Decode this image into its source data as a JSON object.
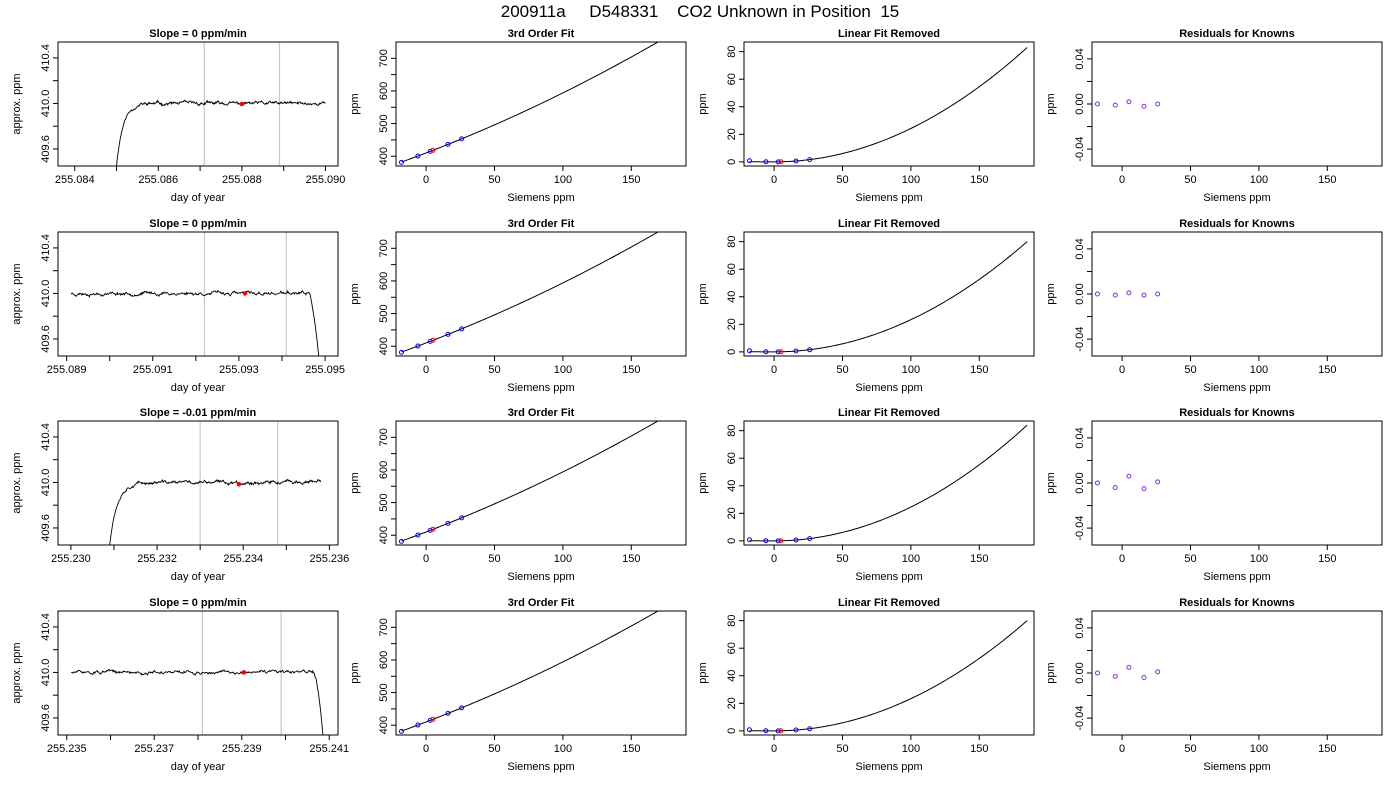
{
  "page": {
    "title": "200911a     D548331    CO2 Unknown in Position  15"
  },
  "colors": {
    "trace": "#000000",
    "marker_red": "#ff0000",
    "marker_blue": "#0000ff",
    "marker_purple": "#8a2be2",
    "fit_line": "#000000",
    "window_line": "#c8c8c8",
    "axis": "#000000"
  },
  "chart_data": [
    {
      "type": "line",
      "row": 1,
      "panel": "time-series",
      "title": "Slope =  0  ppm/min",
      "xlabel": "day of year",
      "ylabel": "approx. ppm",
      "xlim": [
        255.0836,
        255.0903
      ],
      "ylim": [
        409.45,
        410.54
      ],
      "x_ticks": [
        "255.084",
        "255.086",
        "255.088",
        "255.090"
      ],
      "x_tick_values": [
        255.084,
        255.086,
        255.088,
        255.09
      ],
      "x_minor_ticks": [
        255.085,
        255.087,
        255.089
      ],
      "y_ticks": [
        "409.6",
        "410.0",
        "410.4"
      ],
      "y_tick_values": [
        409.6,
        410.0,
        410.4
      ],
      "y_minor_ticks": [
        409.8,
        410.2
      ],
      "window_lines_x": [
        255.0871,
        255.0889
      ],
      "trace": {
        "x_start": 255.085,
        "x_end": 255.09,
        "plateau_ppm": 410.0,
        "noise_ppm": 0.012,
        "shape": "rise",
        "rise_start_ppm": 409.45,
        "rise_duration_days": 0.00065,
        "seed": 11
      },
      "marker": {
        "x": 255.088,
        "y": 409.995
      }
    },
    {
      "type": "line",
      "row": 1,
      "panel": "fit",
      "title": "3rd Order Fit",
      "xlabel": "Siemens ppm",
      "ylabel": "ppm",
      "xlim": [
        -22,
        190
      ],
      "ylim": [
        370,
        750
      ],
      "x_ticks": [
        "0",
        "50",
        "100",
        "150"
      ],
      "x_tick_values": [
        0,
        50,
        100,
        150
      ],
      "y_ticks": [
        "400",
        "500",
        "600",
        "700"
      ],
      "y_tick_values": [
        400,
        500,
        600,
        700
      ],
      "y_minor_ticks": [
        450,
        550,
        650
      ],
      "curve": {
        "x_start": -18,
        "x_end": 185,
        "a": 410,
        "b": 1.6,
        "c": 0.0024
      },
      "knowns": [
        {
          "x": -18,
          "y": 381.1
        },
        {
          "x": -6,
          "y": 400.5
        },
        {
          "x": 3,
          "y": 414.8
        },
        {
          "x": 16,
          "y": 436.2
        },
        {
          "x": 26,
          "y": 453.2
        }
      ],
      "unknown": {
        "x": 5,
        "y": 418.1
      }
    },
    {
      "type": "line",
      "row": 1,
      "panel": "linear-removed",
      "title": "Linear Fit Removed",
      "xlabel": "Siemens ppm",
      "ylabel": "ppm",
      "xlim": [
        -22,
        190
      ],
      "ylim": [
        -3,
        87
      ],
      "x_ticks": [
        "0",
        "50",
        "100",
        "150"
      ],
      "x_tick_values": [
        0,
        50,
        100,
        150
      ],
      "y_ticks": [
        "0",
        "20",
        "40",
        "60",
        "80"
      ],
      "y_tick_values": [
        0,
        20,
        40,
        60,
        80
      ],
      "curve": {
        "x_start": -18,
        "x_end": 185,
        "min_x": 0,
        "end_y": 83
      },
      "knowns": [
        {
          "x": -18,
          "y": 0.8
        },
        {
          "x": -6,
          "y": 0.1
        },
        {
          "x": 3,
          "y": 0.0
        },
        {
          "x": 16,
          "y": 0.6
        },
        {
          "x": 26,
          "y": 1.6
        }
      ],
      "unknown": {
        "x": 5,
        "y": 0.1
      }
    },
    {
      "type": "scatter",
      "row": 1,
      "panel": "residuals",
      "title": "Residuals for Knowns",
      "xlabel": "Siemens ppm",
      "ylabel": "ppm",
      "xlim": [
        -22,
        190
      ],
      "ylim": [
        -0.055,
        0.055
      ],
      "x_ticks": [
        "0",
        "50",
        "100",
        "150"
      ],
      "x_tick_values": [
        0,
        50,
        100,
        150
      ],
      "y_ticks": [
        "-0.04",
        "0.00",
        "0.04"
      ],
      "y_tick_values": [
        -0.04,
        0.0,
        0.04
      ],
      "y_minor_ticks": [
        -0.02,
        0.02
      ],
      "points": [
        {
          "x": -18,
          "y": 0.0
        },
        {
          "x": -5,
          "y": -0.001
        },
        {
          "x": 5,
          "y": 0.002
        },
        {
          "x": 16,
          "y": -0.002
        },
        {
          "x": 26,
          "y": 0.0
        }
      ]
    },
    {
      "type": "line",
      "row": 2,
      "panel": "time-series",
      "title": "Slope =  0  ppm/min",
      "xlabel": "day of year",
      "ylabel": "approx. ppm",
      "xlim": [
        255.0888,
        255.0953
      ],
      "ylim": [
        409.45,
        410.54
      ],
      "x_ticks": [
        "255.089",
        "255.091",
        "255.093",
        "255.095"
      ],
      "x_tick_values": [
        255.089,
        255.091,
        255.093,
        255.095
      ],
      "x_minor_ticks": [
        255.09,
        255.092,
        255.094
      ],
      "y_ticks": [
        "409.6",
        "410.0",
        "410.4"
      ],
      "y_tick_values": [
        409.6,
        410.0,
        410.4
      ],
      "y_minor_ticks": [
        409.8,
        410.2
      ],
      "window_lines_x": [
        255.0922,
        255.0941
      ],
      "trace": {
        "x_start": 255.0891,
        "x_end": 255.0949,
        "plateau_ppm": 410.0,
        "noise_ppm": 0.012,
        "shape": "fall",
        "fall_start_x": 255.09462,
        "fall_end_ppm": 409.45,
        "seed": 23
      },
      "marker": {
        "x": 255.09314,
        "y": 410.0
      }
    },
    {
      "type": "line",
      "row": 2,
      "panel": "fit",
      "title": "3rd Order Fit",
      "xlabel": "Siemens ppm",
      "ylabel": "ppm",
      "xlim": [
        -22,
        190
      ],
      "ylim": [
        370,
        750
      ],
      "x_ticks": [
        "0",
        "50",
        "100",
        "150"
      ],
      "x_tick_values": [
        0,
        50,
        100,
        150
      ],
      "y_ticks": [
        "400",
        "500",
        "600",
        "700"
      ],
      "y_tick_values": [
        400,
        500,
        600,
        700
      ],
      "y_minor_ticks": [
        450,
        550,
        650
      ],
      "curve": {
        "x_start": -18,
        "x_end": 185,
        "a": 410,
        "b": 1.6,
        "c": 0.0024
      },
      "knowns": [
        {
          "x": -18,
          "y": 381.1
        },
        {
          "x": -6,
          "y": 400.5
        },
        {
          "x": 3,
          "y": 414.8
        },
        {
          "x": 16,
          "y": 436.2
        },
        {
          "x": 26,
          "y": 453.2
        }
      ],
      "unknown": {
        "x": 5,
        "y": 418.1
      }
    },
    {
      "type": "line",
      "row": 2,
      "panel": "linear-removed",
      "title": "Linear Fit Removed",
      "xlabel": "Siemens ppm",
      "ylabel": "ppm",
      "xlim": [
        -22,
        190
      ],
      "ylim": [
        -3,
        87
      ],
      "x_ticks": [
        "0",
        "50",
        "100",
        "150"
      ],
      "x_tick_values": [
        0,
        50,
        100,
        150
      ],
      "y_ticks": [
        "0",
        "20",
        "40",
        "60",
        "80"
      ],
      "y_tick_values": [
        0,
        20,
        40,
        60,
        80
      ],
      "curve": {
        "x_start": -18,
        "x_end": 185,
        "min_x": 0,
        "end_y": 80
      },
      "knowns": [
        {
          "x": -18,
          "y": 0.8
        },
        {
          "x": -6,
          "y": 0.1
        },
        {
          "x": 3,
          "y": 0.0
        },
        {
          "x": 16,
          "y": 0.6
        },
        {
          "x": 26,
          "y": 1.5
        }
      ],
      "unknown": {
        "x": 5,
        "y": 0.1
      }
    },
    {
      "type": "scatter",
      "row": 2,
      "panel": "residuals",
      "title": "Residuals for Knowns",
      "xlabel": "Siemens ppm",
      "ylabel": "ppm",
      "xlim": [
        -22,
        190
      ],
      "ylim": [
        -0.055,
        0.055
      ],
      "x_ticks": [
        "0",
        "50",
        "100",
        "150"
      ],
      "x_tick_values": [
        0,
        50,
        100,
        150
      ],
      "y_ticks": [
        "-0.04",
        "0.00",
        "0.04"
      ],
      "y_tick_values": [
        -0.04,
        0.0,
        0.04
      ],
      "y_minor_ticks": [
        -0.02,
        0.02
      ],
      "points": [
        {
          "x": -18,
          "y": 0.0
        },
        {
          "x": -5,
          "y": -0.001
        },
        {
          "x": 5,
          "y": 0.001
        },
        {
          "x": 16,
          "y": -0.001
        },
        {
          "x": 26,
          "y": 0.0
        }
      ]
    },
    {
      "type": "line",
      "row": 3,
      "panel": "time-series",
      "title": "Slope =  -0.01  ppm/min",
      "xlabel": "day of year",
      "ylabel": "approx. ppm",
      "xlim": [
        255.2297,
        255.2362
      ],
      "ylim": [
        409.45,
        410.54
      ],
      "x_ticks": [
        "255.230",
        "255.232",
        "255.234",
        "255.236"
      ],
      "x_tick_values": [
        255.23,
        255.232,
        255.234,
        255.236
      ],
      "x_minor_ticks": [
        255.231,
        255.233,
        255.235
      ],
      "y_ticks": [
        "409.6",
        "410.0",
        "410.4"
      ],
      "y_tick_values": [
        409.6,
        410.0,
        410.4
      ],
      "y_minor_ticks": [
        409.8,
        410.2
      ],
      "window_lines_x": [
        255.233,
        255.2348
      ],
      "trace": {
        "x_start": 255.2309,
        "x_end": 255.2358,
        "plateau_ppm": 410.0,
        "noise_ppm": 0.012,
        "shape": "rise",
        "rise_start_ppm": 409.45,
        "rise_duration_days": 0.0007,
        "seed": 37
      },
      "marker": {
        "x": 255.2339,
        "y": 409.985
      }
    },
    {
      "type": "line",
      "row": 3,
      "panel": "fit",
      "title": "3rd Order Fit",
      "xlabel": "Siemens ppm",
      "ylabel": "ppm",
      "xlim": [
        -22,
        190
      ],
      "ylim": [
        370,
        750
      ],
      "x_ticks": [
        "0",
        "50",
        "100",
        "150"
      ],
      "x_tick_values": [
        0,
        50,
        100,
        150
      ],
      "y_ticks": [
        "400",
        "500",
        "600",
        "700"
      ],
      "y_tick_values": [
        400,
        500,
        600,
        700
      ],
      "y_minor_ticks": [
        450,
        550,
        650
      ],
      "curve": {
        "x_start": -18,
        "x_end": 185,
        "a": 410,
        "b": 1.6,
        "c": 0.0024
      },
      "knowns": [
        {
          "x": -18,
          "y": 381.1
        },
        {
          "x": -6,
          "y": 400.5
        },
        {
          "x": 3,
          "y": 414.8
        },
        {
          "x": 16,
          "y": 436.2
        },
        {
          "x": 26,
          "y": 453.2
        }
      ],
      "unknown": {
        "x": 5,
        "y": 418.1
      }
    },
    {
      "type": "line",
      "row": 3,
      "panel": "linear-removed",
      "title": "Linear Fit Removed",
      "xlabel": "Siemens ppm",
      "ylabel": "ppm",
      "xlim": [
        -22,
        190
      ],
      "ylim": [
        -3,
        87
      ],
      "x_ticks": [
        "0",
        "50",
        "100",
        "150"
      ],
      "x_tick_values": [
        0,
        50,
        100,
        150
      ],
      "y_ticks": [
        "0",
        "20",
        "40",
        "60",
        "80"
      ],
      "y_tick_values": [
        0,
        20,
        40,
        60,
        80
      ],
      "curve": {
        "x_start": -18,
        "x_end": 185,
        "min_x": 0,
        "end_y": 84
      },
      "knowns": [
        {
          "x": -18,
          "y": 0.8
        },
        {
          "x": -6,
          "y": 0.1
        },
        {
          "x": 3,
          "y": 0.0
        },
        {
          "x": 16,
          "y": 0.6
        },
        {
          "x": 26,
          "y": 1.6
        }
      ],
      "unknown": {
        "x": 5,
        "y": 0.1
      }
    },
    {
      "type": "scatter",
      "row": 3,
      "panel": "residuals",
      "title": "Residuals for Knowns",
      "xlabel": "Siemens ppm",
      "ylabel": "ppm",
      "xlim": [
        -22,
        190
      ],
      "ylim": [
        -0.055,
        0.055
      ],
      "x_ticks": [
        "0",
        "50",
        "100",
        "150"
      ],
      "x_tick_values": [
        0,
        50,
        100,
        150
      ],
      "y_ticks": [
        "-0.04",
        "0.00",
        "0.04"
      ],
      "y_tick_values": [
        -0.04,
        0.0,
        0.04
      ],
      "y_minor_ticks": [
        -0.02,
        0.02
      ],
      "points": [
        {
          "x": -18,
          "y": 0.0
        },
        {
          "x": -5,
          "y": -0.004
        },
        {
          "x": 5,
          "y": 0.006
        },
        {
          "x": 16,
          "y": -0.005
        },
        {
          "x": 26,
          "y": 0.001
        }
      ]
    },
    {
      "type": "line",
      "row": 4,
      "panel": "time-series",
      "title": "Slope =  0  ppm/min",
      "xlabel": "day of year",
      "ylabel": "approx. ppm",
      "xlim": [
        255.2348,
        255.2412
      ],
      "ylim": [
        409.45,
        410.54
      ],
      "x_ticks": [
        "255.235",
        "255.237",
        "255.239",
        "255.241"
      ],
      "x_tick_values": [
        255.235,
        255.237,
        255.239,
        255.241
      ],
      "x_minor_ticks": [
        255.236,
        255.238,
        255.24
      ],
      "y_ticks": [
        "409.6",
        "410.0",
        "410.4"
      ],
      "y_tick_values": [
        409.6,
        410.0,
        410.4
      ],
      "y_minor_ticks": [
        409.8,
        410.2
      ],
      "window_lines_x": [
        255.2381,
        255.2399
      ],
      "trace": {
        "x_start": 255.2351,
        "x_end": 255.2409,
        "plateau_ppm": 410.0,
        "noise_ppm": 0.012,
        "shape": "fall",
        "fall_start_x": 255.24065,
        "fall_end_ppm": 409.45,
        "seed": 51
      },
      "marker": {
        "x": 255.23905,
        "y": 410.0
      }
    },
    {
      "type": "line",
      "row": 4,
      "panel": "fit",
      "title": "3rd Order Fit",
      "xlabel": "Siemens ppm",
      "ylabel": "ppm",
      "xlim": [
        -22,
        190
      ],
      "ylim": [
        370,
        750
      ],
      "x_ticks": [
        "0",
        "50",
        "100",
        "150"
      ],
      "x_tick_values": [
        0,
        50,
        100,
        150
      ],
      "y_ticks": [
        "400",
        "500",
        "600",
        "700"
      ],
      "y_tick_values": [
        400,
        500,
        600,
        700
      ],
      "y_minor_ticks": [
        450,
        550,
        650
      ],
      "curve": {
        "x_start": -18,
        "x_end": 185,
        "a": 410,
        "b": 1.6,
        "c": 0.0024
      },
      "knowns": [
        {
          "x": -18,
          "y": 381.1
        },
        {
          "x": -6,
          "y": 400.5
        },
        {
          "x": 3,
          "y": 414.8
        },
        {
          "x": 16,
          "y": 436.2
        },
        {
          "x": 26,
          "y": 453.2
        }
      ],
      "unknown": {
        "x": 5,
        "y": 418.1
      }
    },
    {
      "type": "line",
      "row": 4,
      "panel": "linear-removed",
      "title": "Linear Fit Removed",
      "xlabel": "Siemens ppm",
      "ylabel": "ppm",
      "xlim": [
        -22,
        190
      ],
      "ylim": [
        -3,
        87
      ],
      "x_ticks": [
        "0",
        "50",
        "100",
        "150"
      ],
      "x_tick_values": [
        0,
        50,
        100,
        150
      ],
      "y_ticks": [
        "0",
        "20",
        "40",
        "60",
        "80"
      ],
      "y_tick_values": [
        0,
        20,
        40,
        60,
        80
      ],
      "curve": {
        "x_start": -18,
        "x_end": 185,
        "min_x": 0,
        "end_y": 80
      },
      "knowns": [
        {
          "x": -18,
          "y": 0.8
        },
        {
          "x": -6,
          "y": 0.1
        },
        {
          "x": 3,
          "y": 0.0
        },
        {
          "x": 16,
          "y": 0.6
        },
        {
          "x": 26,
          "y": 1.5
        }
      ],
      "unknown": {
        "x": 5,
        "y": 0.1
      }
    },
    {
      "type": "scatter",
      "row": 4,
      "panel": "residuals",
      "title": "Residuals for Knowns",
      "xlabel": "Siemens ppm",
      "ylabel": "ppm",
      "xlim": [
        -22,
        190
      ],
      "ylim": [
        -0.055,
        0.055
      ],
      "x_ticks": [
        "0",
        "50",
        "100",
        "150"
      ],
      "x_tick_values": [
        0,
        50,
        100,
        150
      ],
      "y_ticks": [
        "-0.04",
        "0.00",
        "0.04"
      ],
      "y_tick_values": [
        -0.04,
        0.0,
        0.04
      ],
      "y_minor_ticks": [
        -0.02,
        0.02
      ],
      "points": [
        {
          "x": -18,
          "y": 0.0
        },
        {
          "x": -5,
          "y": -0.003
        },
        {
          "x": 5,
          "y": 0.005
        },
        {
          "x": 16,
          "y": -0.004
        },
        {
          "x": 26,
          "y": 0.001
        }
      ]
    }
  ]
}
